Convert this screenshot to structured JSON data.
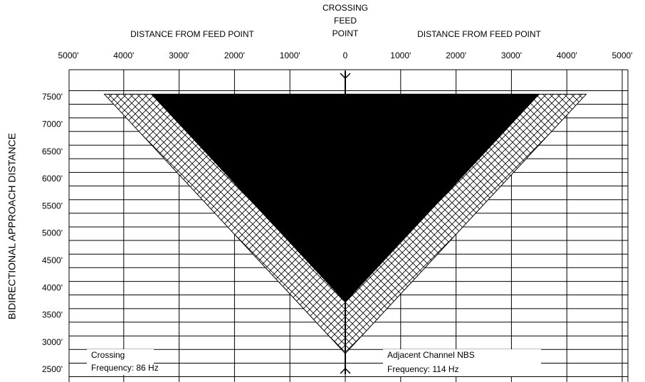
{
  "header": {
    "crossing": "CROSSING",
    "feed": "FEED",
    "point": "POINT",
    "left_title": "DISTANCE FROM FEED POINT",
    "right_title": "DISTANCE FROM FEED POINT"
  },
  "y_label": "BIDIRECTIONAL APPROACH DISTANCE",
  "xticks": [
    {
      "value": -5000,
      "label": "5000'"
    },
    {
      "value": -4000,
      "label": "4000'"
    },
    {
      "value": -3000,
      "label": "3000'"
    },
    {
      "value": -2000,
      "label": "2000'"
    },
    {
      "value": -1000,
      "label": "1000'"
    },
    0,
    {
      "value": 1000,
      "label": "1000'"
    },
    {
      "value": 2000,
      "label": "2000'"
    },
    {
      "value": 3000,
      "label": "3000'"
    },
    {
      "value": 4000,
      "label": "4000'"
    },
    {
      "value": 5000,
      "label": "5000'"
    }
  ],
  "yticks": [
    {
      "value": 7500,
      "label": "7500'"
    },
    {
      "value": 7000,
      "label": "7000'"
    },
    {
      "value": 6500,
      "label": "6500'"
    },
    {
      "value": 6000,
      "label": "6000'"
    },
    {
      "value": 5500,
      "label": "5500'"
    },
    {
      "value": 5000,
      "label": "5000'"
    },
    {
      "value": 4500,
      "label": "4500'"
    },
    {
      "value": 4000,
      "label": "4000'"
    },
    {
      "value": 3500,
      "label": "3500'"
    },
    {
      "value": 3000,
      "label": "3000'"
    },
    {
      "value": 2500,
      "label": "2500'"
    }
  ],
  "regions": {
    "hatched": {
      "half_width": 4350,
      "top": 7560,
      "apex": 2800
    },
    "solid": {
      "half_width": 3500,
      "top": 7560,
      "apex": 3750
    }
  },
  "legend": {
    "left": {
      "line1": "Crossing",
      "line2": "Frequency:  86 Hz"
    },
    "right": {
      "line1": "Adjacent Channel NBS",
      "line2": "Frequency: 114 Hz"
    }
  }
}
